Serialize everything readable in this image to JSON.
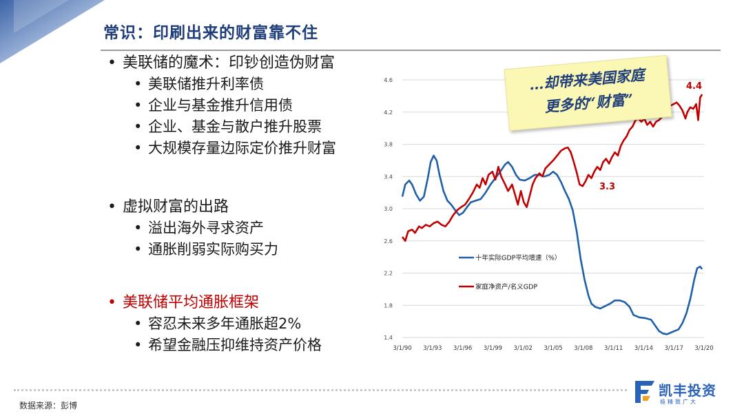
{
  "title": "常识：印刷出来的财富靠不住",
  "bullets": {
    "s1_head": "美联储的魔术：印钞创造伪财富",
    "s1_items": [
      "美联储推升利率债",
      "企业与基金推升信用债",
      "企业、基金与散户推升股票",
      "大规模存量边际定价推升财富"
    ],
    "s2_head": "虚拟财富的出路",
    "s2_items": [
      "溢出海外寻求资产",
      "通胀削弱实际购买力"
    ],
    "s3_head": "美联储平均通胀框架",
    "s3_items": [
      "容忍未来多年通胀超2%",
      "希望金融压抑维持资产价格"
    ]
  },
  "note": {
    "line1": "…却带来美国家庭",
    "line2": "更多的“财富”"
  },
  "footer": {
    "source": "数据来源：彭博",
    "brand": "凯丰投资",
    "slogan": "极精致广大"
  },
  "colors": {
    "title": "#1f3e79",
    "gdp_series": "#1f5fa8",
    "wealth_series": "#c00000",
    "red_text": "#c00000"
  },
  "chart_data": {
    "type": "line",
    "ylim": [
      1.4,
      4.6
    ],
    "yticks": [
      "4.6",
      "4.2",
      "3.8",
      "3.4",
      "3.0",
      "2.6",
      "2.2",
      "1.8",
      "1.4"
    ],
    "xticks": [
      "3/1/90",
      "3/1/93",
      "3/1/96",
      "3/1/99",
      "3/1/02",
      "3/1/05",
      "3/1/08",
      "3/1/11",
      "3/1/14",
      "3/1/17",
      "3/1/20"
    ],
    "xlim": [
      1990.0,
      2020.8
    ],
    "grid": "horizontal",
    "series": [
      {
        "name": "十年实际GDP平均增速（%）",
        "color": "#1f5fa8",
        "points": [
          [
            1990.0,
            3.15
          ],
          [
            1990.3,
            3.3
          ],
          [
            1990.7,
            3.35
          ],
          [
            1991.0,
            3.3
          ],
          [
            1991.4,
            3.18
          ],
          [
            1991.8,
            3.1
          ],
          [
            1992.2,
            3.15
          ],
          [
            1992.6,
            3.38
          ],
          [
            1992.9,
            3.58
          ],
          [
            1993.2,
            3.66
          ],
          [
            1993.5,
            3.6
          ],
          [
            1993.8,
            3.42
          ],
          [
            1994.2,
            3.22
          ],
          [
            1994.6,
            3.1
          ],
          [
            1995.0,
            3.05
          ],
          [
            1995.4,
            2.98
          ],
          [
            1995.8,
            2.92
          ],
          [
            1996.2,
            2.95
          ],
          [
            1996.6,
            3.02
          ],
          [
            1997.0,
            3.08
          ],
          [
            1997.5,
            3.1
          ],
          [
            1998.0,
            3.12
          ],
          [
            1998.5,
            3.2
          ],
          [
            1999.0,
            3.3
          ],
          [
            1999.5,
            3.38
          ],
          [
            2000.0,
            3.46
          ],
          [
            2000.5,
            3.55
          ],
          [
            2000.8,
            3.58
          ],
          [
            2001.2,
            3.52
          ],
          [
            2001.6,
            3.42
          ],
          [
            2002.0,
            3.36
          ],
          [
            2002.5,
            3.35
          ],
          [
            2003.0,
            3.38
          ],
          [
            2003.5,
            3.42
          ],
          [
            2004.0,
            3.42
          ],
          [
            2004.5,
            3.4
          ],
          [
            2005.0,
            3.42
          ],
          [
            2005.4,
            3.46
          ],
          [
            2005.8,
            3.42
          ],
          [
            2006.2,
            3.33
          ],
          [
            2006.6,
            3.22
          ],
          [
            2007.0,
            3.12
          ],
          [
            2007.4,
            2.98
          ],
          [
            2007.8,
            2.72
          ],
          [
            2008.2,
            2.38
          ],
          [
            2008.6,
            2.12
          ],
          [
            2009.0,
            1.92
          ],
          [
            2009.3,
            1.82
          ],
          [
            2009.7,
            1.78
          ],
          [
            2010.2,
            1.76
          ],
          [
            2010.7,
            1.79
          ],
          [
            2011.2,
            1.82
          ],
          [
            2011.7,
            1.86
          ],
          [
            2012.2,
            1.86
          ],
          [
            2012.7,
            1.84
          ],
          [
            2013.2,
            1.78
          ],
          [
            2013.6,
            1.68
          ],
          [
            2014.2,
            1.65
          ],
          [
            2014.8,
            1.64
          ],
          [
            2015.4,
            1.62
          ],
          [
            2015.8,
            1.55
          ],
          [
            2016.2,
            1.48
          ],
          [
            2016.6,
            1.45
          ],
          [
            2017.0,
            1.44
          ],
          [
            2017.4,
            1.46
          ],
          [
            2017.8,
            1.48
          ],
          [
            2018.2,
            1.5
          ],
          [
            2018.6,
            1.58
          ],
          [
            2019.0,
            1.7
          ],
          [
            2019.4,
            1.88
          ],
          [
            2019.8,
            2.12
          ],
          [
            2020.1,
            2.26
          ],
          [
            2020.4,
            2.28
          ],
          [
            2020.6,
            2.25
          ]
        ]
      },
      {
        "name": "家庭净资产/名义GDP",
        "color": "#c00000",
        "points": [
          [
            1990.0,
            2.65
          ],
          [
            1990.3,
            2.6
          ],
          [
            1990.6,
            2.72
          ],
          [
            1991.0,
            2.74
          ],
          [
            1991.3,
            2.7
          ],
          [
            1991.7,
            2.78
          ],
          [
            1992.0,
            2.76
          ],
          [
            1992.4,
            2.8
          ],
          [
            1992.8,
            2.78
          ],
          [
            1993.2,
            2.82
          ],
          [
            1993.6,
            2.84
          ],
          [
            1994.0,
            2.8
          ],
          [
            1994.4,
            2.78
          ],
          [
            1994.8,
            2.84
          ],
          [
            1995.2,
            2.92
          ],
          [
            1995.6,
            2.98
          ],
          [
            1996.0,
            3.02
          ],
          [
            1996.4,
            3.05
          ],
          [
            1996.8,
            3.12
          ],
          [
            1997.2,
            3.2
          ],
          [
            1997.6,
            3.3
          ],
          [
            1997.9,
            3.26
          ],
          [
            1998.2,
            3.38
          ],
          [
            1998.5,
            3.3
          ],
          [
            1998.8,
            3.42
          ],
          [
            1999.2,
            3.46
          ],
          [
            1999.5,
            3.36
          ],
          [
            1999.8,
            3.52
          ],
          [
            2000.1,
            3.4
          ],
          [
            2000.5,
            3.3
          ],
          [
            2000.8,
            3.22
          ],
          [
            2001.2,
            3.3
          ],
          [
            2001.5,
            3.18
          ],
          [
            2001.8,
            3.05
          ],
          [
            2002.1,
            3.22
          ],
          [
            2002.4,
            3.08
          ],
          [
            2002.7,
            3.02
          ],
          [
            2003.0,
            3.16
          ],
          [
            2003.3,
            3.3
          ],
          [
            2003.6,
            3.38
          ],
          [
            2004.0,
            3.44
          ],
          [
            2004.3,
            3.4
          ],
          [
            2004.6,
            3.5
          ],
          [
            2005.0,
            3.55
          ],
          [
            2005.4,
            3.6
          ],
          [
            2005.8,
            3.66
          ],
          [
            2006.2,
            3.72
          ],
          [
            2006.6,
            3.75
          ],
          [
            2006.9,
            3.76
          ],
          [
            2007.2,
            3.7
          ],
          [
            2007.5,
            3.58
          ],
          [
            2007.8,
            3.45
          ],
          [
            2008.1,
            3.3
          ],
          [
            2008.4,
            3.28
          ],
          [
            2008.7,
            3.34
          ],
          [
            2009.0,
            3.42
          ],
          [
            2009.3,
            3.38
          ],
          [
            2009.6,
            3.46
          ],
          [
            2009.9,
            3.52
          ],
          [
            2010.2,
            3.48
          ],
          [
            2010.5,
            3.58
          ],
          [
            2010.8,
            3.62
          ],
          [
            2011.1,
            3.56
          ],
          [
            2011.4,
            3.64
          ],
          [
            2011.7,
            3.7
          ],
          [
            2012.0,
            3.66
          ],
          [
            2012.3,
            3.78
          ],
          [
            2012.6,
            3.85
          ],
          [
            2012.9,
            3.9
          ],
          [
            2013.2,
            3.98
          ],
          [
            2013.5,
            4.02
          ],
          [
            2013.8,
            4.1
          ],
          [
            2014.1,
            4.12
          ],
          [
            2014.4,
            4.08
          ],
          [
            2014.7,
            4.12
          ],
          [
            2015.0,
            4.04
          ],
          [
            2015.3,
            4.08
          ],
          [
            2015.6,
            4.02
          ],
          [
            2015.9,
            4.08
          ],
          [
            2016.2,
            4.1
          ],
          [
            2016.5,
            4.14
          ],
          [
            2016.8,
            4.2
          ],
          [
            2017.1,
            4.24
          ],
          [
            2017.4,
            4.28
          ],
          [
            2017.7,
            4.3
          ],
          [
            2018.0,
            4.32
          ],
          [
            2018.3,
            4.28
          ],
          [
            2018.6,
            4.22
          ],
          [
            2018.9,
            4.12
          ],
          [
            2019.1,
            4.2
          ],
          [
            2019.4,
            4.26
          ],
          [
            2019.7,
            4.24
          ],
          [
            2020.0,
            4.3
          ],
          [
            2020.2,
            4.1
          ],
          [
            2020.4,
            4.38
          ],
          [
            2020.6,
            4.42
          ]
        ]
      }
    ],
    "annotations": [
      {
        "text": "4.4",
        "x": 2020.5,
        "y": 4.42
      },
      {
        "text": "3.3",
        "x": 2008.6,
        "y": 3.28
      }
    ]
  }
}
